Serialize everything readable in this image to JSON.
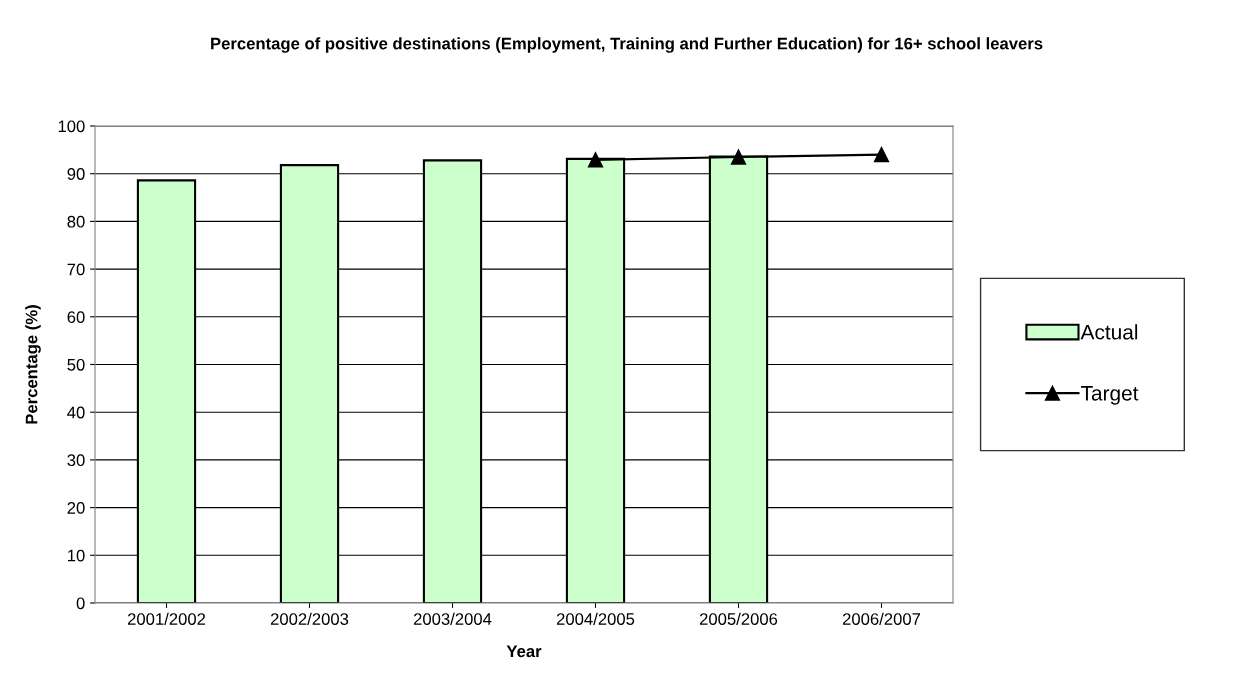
{
  "chart_data": {
    "type": "bar",
    "title": "Percentage of positive destinations (Employment, Training and Further Education) for 16+ school leavers",
    "xlabel": "Year",
    "ylabel": "Percentage (%)",
    "categories": [
      "2001/2002",
      "2002/2003",
      "2003/2004",
      "2004/2005",
      "2005/2006",
      "2006/2007"
    ],
    "series": [
      {
        "name": "Actual",
        "color": "#ccffcc",
        "values": [
          88.6,
          91.8,
          92.8,
          93.1,
          93.6,
          null
        ]
      },
      {
        "name": "Target",
        "type": "line",
        "color": "#000000",
        "marker": "triangle",
        "values": [
          null,
          null,
          null,
          92.9,
          93.5,
          94.0
        ]
      }
    ],
    "ylim": [
      0,
      100
    ],
    "yticks": [
      0,
      10,
      20,
      30,
      40,
      50,
      60,
      70,
      80,
      90,
      100
    ],
    "grid": "y",
    "legend": "right"
  }
}
